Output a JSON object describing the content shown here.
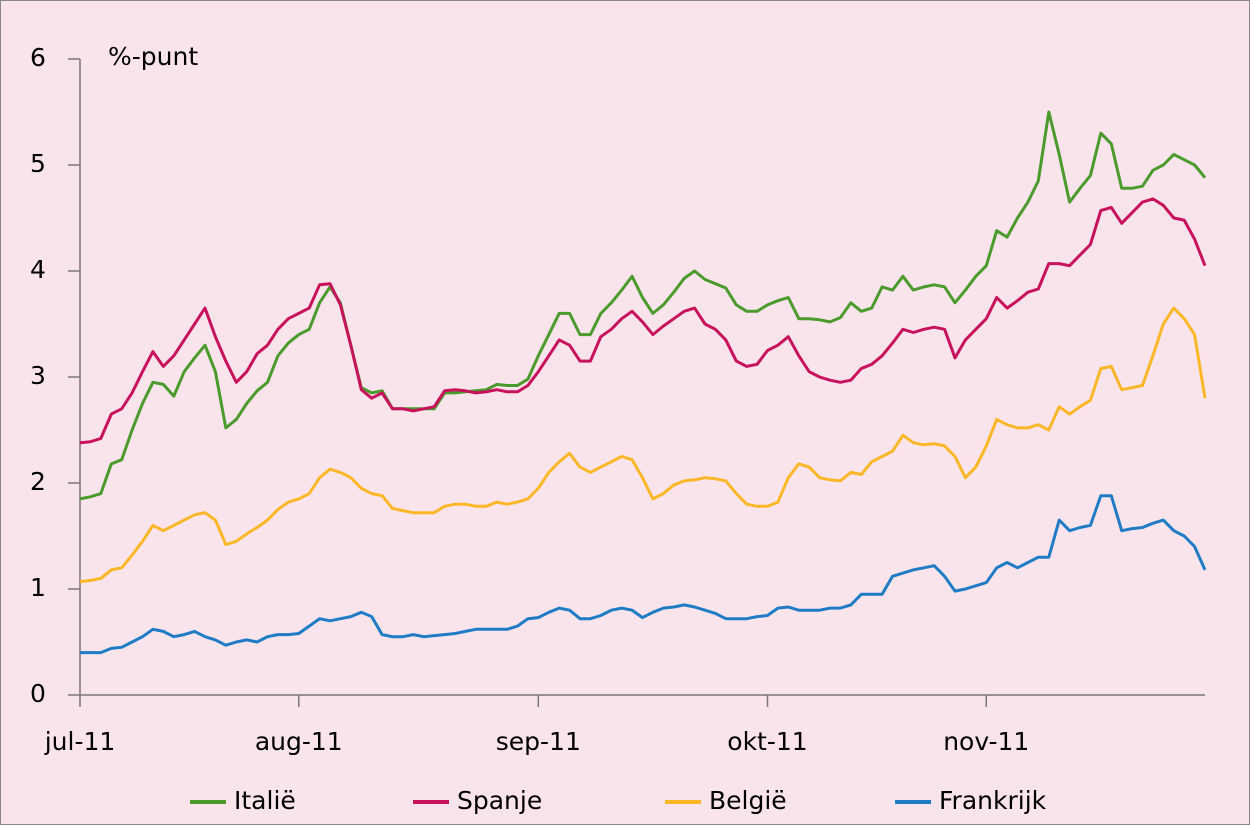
{
  "chart_data": {
    "type": "line",
    "annotations": [
      "%-punt"
    ],
    "categories": [
      "jul-11",
      null,
      null,
      null,
      null,
      null,
      null,
      null,
      null,
      null,
      null,
      null,
      null,
      null,
      null,
      null,
      null,
      null,
      null,
      null,
      null,
      "aug-11",
      null,
      null,
      null,
      null,
      null,
      null,
      null,
      null,
      null,
      null,
      null,
      null,
      null,
      null,
      null,
      null,
      null,
      null,
      null,
      null,
      null,
      null,
      "sep-11",
      null,
      null,
      null,
      null,
      null,
      null,
      null,
      null,
      null,
      null,
      null,
      null,
      null,
      null,
      null,
      null,
      null,
      null,
      null,
      null,
      null,
      "okt-11",
      null,
      null,
      null,
      null,
      null,
      null,
      null,
      null,
      null,
      null,
      null,
      null,
      null,
      null,
      null,
      null,
      null,
      null,
      null,
      null,
      "nov-11",
      null,
      null,
      null,
      null,
      null,
      null,
      null,
      null,
      null,
      null,
      null,
      null,
      null,
      null,
      null,
      null,
      null,
      null,
      null,
      null,
      null
    ],
    "series": [
      {
        "name": "Italië",
        "color": "#4b9a2c",
        "values": [
          1.85,
          1.87,
          1.9,
          2.18,
          2.22,
          2.5,
          2.75,
          2.95,
          2.93,
          2.82,
          3.05,
          3.18,
          3.3,
          3.05,
          2.52,
          2.6,
          2.75,
          2.87,
          2.95,
          3.2,
          3.32,
          3.4,
          3.45,
          3.7,
          3.85,
          3.7,
          3.3,
          2.9,
          2.85,
          2.87,
          2.7,
          2.7,
          2.7,
          2.7,
          2.7,
          2.85,
          2.85,
          2.86,
          2.87,
          2.88,
          2.93,
          2.92,
          2.92,
          2.98,
          3.2,
          3.4,
          3.6,
          3.6,
          3.4,
          3.4,
          3.6,
          3.7,
          3.82,
          3.95,
          3.75,
          3.6,
          3.68,
          3.8,
          3.93,
          4.0,
          3.92,
          3.88,
          3.84,
          3.68,
          3.62,
          3.62,
          3.68,
          3.72,
          3.75,
          3.55,
          3.55,
          3.54,
          3.52,
          3.56,
          3.7,
          3.62,
          3.65,
          3.85,
          3.82,
          3.95,
          3.82,
          3.85,
          3.87,
          3.85,
          3.7,
          3.82,
          3.95,
          4.05,
          4.38,
          4.32,
          4.5,
          4.65,
          4.85,
          5.5,
          5.1,
          4.65,
          4.78,
          4.9,
          5.3,
          5.2,
          4.78,
          4.78,
          4.8,
          4.95,
          5.0,
          5.1,
          5.05,
          5.0,
          4.88
        ]
      },
      {
        "name": "Spanje",
        "color": "#c8125c",
        "values": [
          2.38,
          2.39,
          2.42,
          2.65,
          2.7,
          2.85,
          3.05,
          3.24,
          3.1,
          3.2,
          3.35,
          3.5,
          3.65,
          3.38,
          3.15,
          2.95,
          3.05,
          3.22,
          3.3,
          3.45,
          3.55,
          3.6,
          3.65,
          3.87,
          3.88,
          3.68,
          3.3,
          2.88,
          2.8,
          2.85,
          2.7,
          2.7,
          2.68,
          2.7,
          2.72,
          2.87,
          2.88,
          2.87,
          2.85,
          2.86,
          2.88,
          2.86,
          2.86,
          2.92,
          3.05,
          3.2,
          3.35,
          3.3,
          3.15,
          3.15,
          3.38,
          3.45,
          3.55,
          3.62,
          3.52,
          3.4,
          3.48,
          3.55,
          3.62,
          3.65,
          3.5,
          3.45,
          3.35,
          3.15,
          3.1,
          3.12,
          3.25,
          3.3,
          3.38,
          3.2,
          3.05,
          3.0,
          2.97,
          2.95,
          2.97,
          3.08,
          3.12,
          3.2,
          3.32,
          3.45,
          3.42,
          3.45,
          3.47,
          3.45,
          3.18,
          3.35,
          3.45,
          3.55,
          3.75,
          3.65,
          3.72,
          3.8,
          3.83,
          4.07,
          4.07,
          4.05,
          4.15,
          4.25,
          4.57,
          4.6,
          4.45,
          4.55,
          4.65,
          4.68,
          4.62,
          4.5,
          4.48,
          4.3,
          4.05
        ]
      },
      {
        "name": "België",
        "color": "#fbb727",
        "values": [
          1.07,
          1.08,
          1.1,
          1.18,
          1.2,
          1.32,
          1.45,
          1.6,
          1.55,
          1.6,
          1.65,
          1.7,
          1.72,
          1.65,
          1.42,
          1.45,
          1.52,
          1.58,
          1.65,
          1.75,
          1.82,
          1.85,
          1.9,
          2.05,
          2.13,
          2.1,
          2.05,
          1.95,
          1.9,
          1.88,
          1.76,
          1.74,
          1.72,
          1.72,
          1.72,
          1.78,
          1.8,
          1.8,
          1.78,
          1.78,
          1.82,
          1.8,
          1.82,
          1.85,
          1.95,
          2.1,
          2.2,
          2.28,
          2.15,
          2.1,
          2.15,
          2.2,
          2.25,
          2.22,
          2.05,
          1.85,
          1.9,
          1.98,
          2.02,
          2.03,
          2.05,
          2.04,
          2.02,
          1.9,
          1.8,
          1.78,
          1.78,
          1.82,
          2.05,
          2.18,
          2.15,
          2.05,
          2.03,
          2.02,
          2.1,
          2.08,
          2.2,
          2.25,
          2.3,
          2.45,
          2.38,
          2.36,
          2.37,
          2.35,
          2.25,
          2.05,
          2.15,
          2.35,
          2.6,
          2.55,
          2.52,
          2.52,
          2.55,
          2.5,
          2.72,
          2.65,
          2.72,
          2.78,
          3.08,
          3.1,
          2.88,
          2.9,
          2.92,
          3.2,
          3.5,
          3.65,
          3.55,
          3.4,
          2.8
        ]
      },
      {
        "name": "Frankrijk",
        "color": "#1f7cc4",
        "values": [
          0.4,
          0.4,
          0.4,
          0.44,
          0.45,
          0.5,
          0.55,
          0.62,
          0.6,
          0.55,
          0.57,
          0.6,
          0.55,
          0.52,
          0.47,
          0.5,
          0.52,
          0.5,
          0.55,
          0.57,
          0.57,
          0.58,
          0.65,
          0.72,
          0.7,
          0.72,
          0.74,
          0.78,
          0.74,
          0.57,
          0.55,
          0.55,
          0.57,
          0.55,
          0.56,
          0.57,
          0.58,
          0.6,
          0.62,
          0.62,
          0.62,
          0.62,
          0.65,
          0.72,
          0.73,
          0.78,
          0.82,
          0.8,
          0.72,
          0.72,
          0.75,
          0.8,
          0.82,
          0.8,
          0.73,
          0.78,
          0.82,
          0.83,
          0.85,
          0.83,
          0.8,
          0.77,
          0.72,
          0.72,
          0.72,
          0.74,
          0.75,
          0.82,
          0.83,
          0.8,
          0.8,
          0.8,
          0.82,
          0.82,
          0.85,
          0.95,
          0.95,
          0.95,
          1.12,
          1.15,
          1.18,
          1.2,
          1.22,
          1.12,
          0.98,
          1.0,
          1.03,
          1.06,
          1.2,
          1.25,
          1.2,
          1.25,
          1.3,
          1.3,
          1.65,
          1.55,
          1.58,
          1.6,
          1.88,
          1.88,
          1.55,
          1.57,
          1.58,
          1.62,
          1.65,
          1.55,
          1.5,
          1.4,
          1.18
        ]
      }
    ],
    "ylim": [
      0,
      6
    ],
    "yticks": [
      0,
      1,
      2,
      3,
      4,
      5,
      6
    ],
    "legend": "bottom"
  }
}
